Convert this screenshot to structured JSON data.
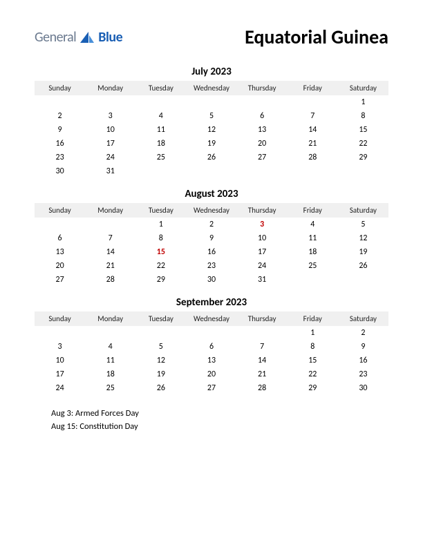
{
  "logo": {
    "general": "General",
    "blue": "Blue",
    "icon_color_dark": "#1a5fb4",
    "icon_color_light": "#4a90d9"
  },
  "title": "Equatorial Guinea",
  "day_headers": [
    "Sunday",
    "Monday",
    "Tuesday",
    "Wednesday",
    "Thursday",
    "Friday",
    "Saturday"
  ],
  "months": [
    {
      "title": "July 2023",
      "rows": [
        [
          "",
          "",
          "",
          "",
          "",
          "",
          "1"
        ],
        [
          "2",
          "3",
          "4",
          "5",
          "6",
          "7",
          "8"
        ],
        [
          "9",
          "10",
          "11",
          "12",
          "13",
          "14",
          "15"
        ],
        [
          "16",
          "17",
          "18",
          "19",
          "20",
          "21",
          "22"
        ],
        [
          "23",
          "24",
          "25",
          "26",
          "27",
          "28",
          "29"
        ],
        [
          "30",
          "31",
          "",
          "",
          "",
          "",
          ""
        ]
      ],
      "holidays_idx": []
    },
    {
      "title": "August 2023",
      "rows": [
        [
          "",
          "",
          "1",
          "2",
          "3",
          "4",
          "5"
        ],
        [
          "6",
          "7",
          "8",
          "9",
          "10",
          "11",
          "12"
        ],
        [
          "13",
          "14",
          "15",
          "16",
          "17",
          "18",
          "19"
        ],
        [
          "20",
          "21",
          "22",
          "23",
          "24",
          "25",
          "26"
        ],
        [
          "27",
          "28",
          "29",
          "30",
          "31",
          "",
          ""
        ]
      ],
      "holidays_idx": [
        [
          0,
          4
        ],
        [
          2,
          2
        ]
      ]
    },
    {
      "title": "September 2023",
      "rows": [
        [
          "",
          "",
          "",
          "",
          "",
          "1",
          "2"
        ],
        [
          "3",
          "4",
          "5",
          "6",
          "7",
          "8",
          "9"
        ],
        [
          "10",
          "11",
          "12",
          "13",
          "14",
          "15",
          "16"
        ],
        [
          "17",
          "18",
          "19",
          "20",
          "21",
          "22",
          "23"
        ],
        [
          "24",
          "25",
          "26",
          "27",
          "28",
          "29",
          "30"
        ]
      ],
      "holidays_idx": []
    }
  ],
  "holiday_list": [
    "Aug 3: Armed Forces Day",
    "Aug 15: Constitution Day"
  ],
  "colors": {
    "header_bg": "#f0f0f0",
    "holiday_text": "#c00000",
    "body_text": "#000000"
  }
}
